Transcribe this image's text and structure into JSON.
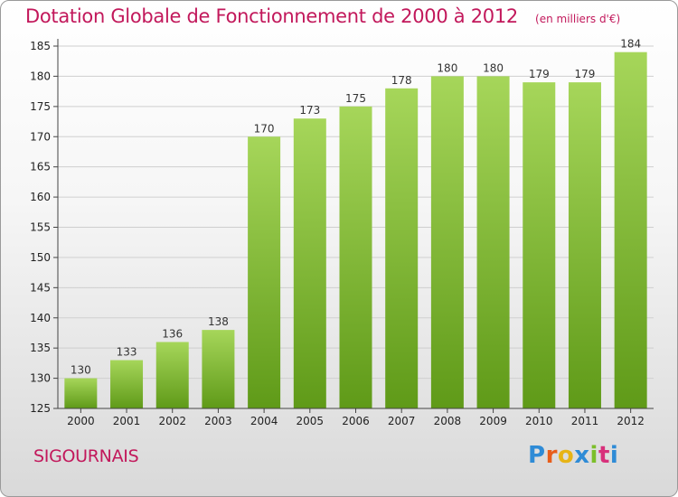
{
  "title": "Dotation Globale de Fonctionnement de 2000 à 2012",
  "subtitle": "(en milliers d'€)",
  "commune": "SIGOURNAIS",
  "logo": {
    "letters": [
      "P",
      "r",
      "o",
      "x",
      "i",
      "t",
      "i"
    ],
    "colors": [
      "#2e8bd6",
      "#e85d1a",
      "#e7b416",
      "#2e8bd6",
      "#7cbf2a",
      "#d8307b",
      "#2e8bd6"
    ]
  },
  "colors": {
    "title": "#c2185b",
    "bar_light": "#a6d65a",
    "bar_dark": "#5f9a18",
    "grid": "#cfcfcf"
  },
  "chart_data": {
    "type": "bar",
    "title": "Dotation Globale de Fonctionnement de 2000 à 2012",
    "xlabel": "",
    "ylabel": "",
    "categories": [
      "2000",
      "2001",
      "2002",
      "2003",
      "2004",
      "2005",
      "2006",
      "2007",
      "2008",
      "2009",
      "2010",
      "2011",
      "2012"
    ],
    "values": [
      130,
      133,
      136,
      138,
      170,
      173,
      175,
      178,
      180,
      180,
      179,
      179,
      184
    ],
    "ylim": [
      125,
      185
    ],
    "yticks": [
      125,
      130,
      135,
      140,
      145,
      150,
      155,
      160,
      165,
      170,
      175,
      180,
      185
    ],
    "grid": true
  }
}
